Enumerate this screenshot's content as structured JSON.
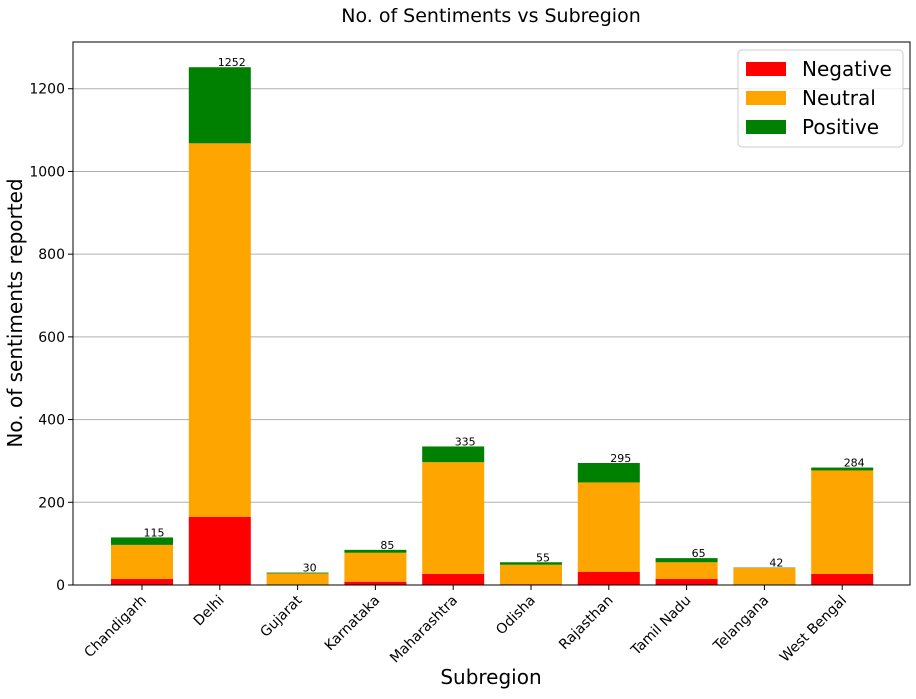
{
  "chart_data": {
    "type": "bar",
    "stacked": true,
    "title": "No. of Sentiments vs Subregion",
    "xlabel": "Subregion",
    "ylabel": "No. of sentiments reported",
    "ylim": [
      0,
      1313
    ],
    "yticks": [
      0,
      200,
      400,
      600,
      800,
      1000,
      1200
    ],
    "grid": "y",
    "legend_position": "top-right",
    "categories": [
      "Chandigarh",
      "Delhi",
      "Gujarat",
      "Karnataka",
      "Maharashtra",
      "Odisha",
      "Rajasthan",
      "Tamil Nadu",
      "Telangana",
      "West Bengal"
    ],
    "series": [
      {
        "name": "Negative",
        "color": "#ff0000",
        "values": [
          15,
          165,
          1,
          8,
          27,
          2,
          32,
          15,
          1,
          27
        ]
      },
      {
        "name": "Neutral",
        "color": "#ffa500",
        "values": [
          82,
          903,
          27,
          70,
          270,
          47,
          216,
          40,
          40,
          250
        ]
      },
      {
        "name": "Positive",
        "color": "#008000",
        "values": [
          18,
          184,
          2,
          7,
          38,
          6,
          47,
          10,
          1,
          7
        ]
      }
    ],
    "totals": [
      115,
      1252,
      30,
      85,
      335,
      55,
      295,
      65,
      42,
      284
    ]
  }
}
